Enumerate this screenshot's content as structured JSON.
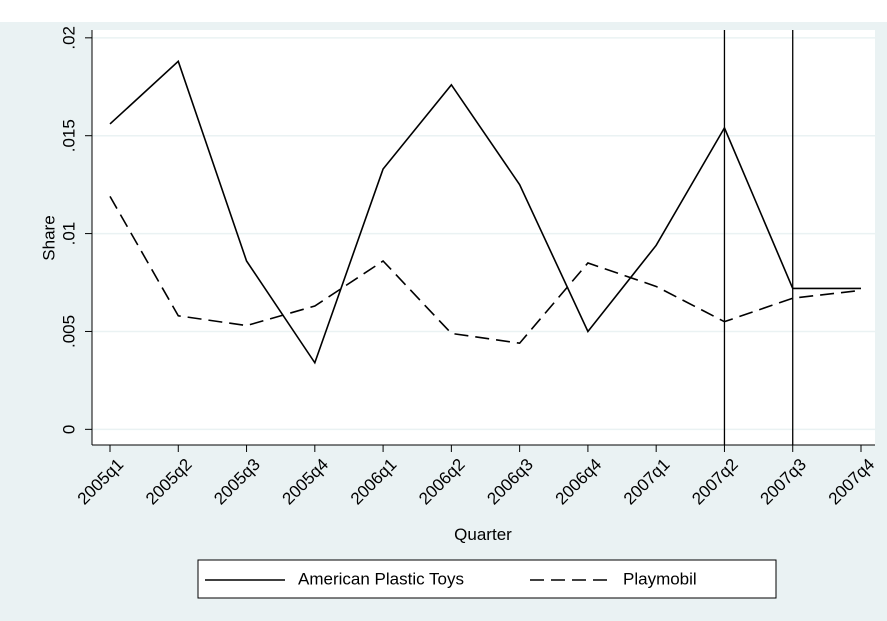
{
  "chart_data": {
    "type": "line",
    "categories": [
      "2005q1",
      "2005q2",
      "2005q3",
      "2005q4",
      "2006q1",
      "2006q2",
      "2006q3",
      "2006q4",
      "2007q1",
      "2007q2",
      "2007q3",
      "2007q4"
    ],
    "series": [
      {
        "name": "American Plastic Toys",
        "color": "#000000",
        "dash": "solid",
        "values": [
          0.0156,
          0.0188,
          0.0086,
          0.0034,
          0.0133,
          0.0176,
          0.0125,
          0.005,
          0.0094,
          0.0154,
          0.0072,
          0.0072
        ]
      },
      {
        "name": "Playmobil",
        "color": "#000000",
        "dash": "dashed",
        "values": [
          0.0119,
          0.0058,
          0.0053,
          0.0063,
          0.0086,
          0.0049,
          0.0044,
          0.0085,
          0.0073,
          0.0055,
          0.0067,
          0.0071
        ]
      }
    ],
    "xlabel": "Quarter",
    "ylabel": "Share",
    "ylim": [
      -0.0008,
      0.0204
    ],
    "yticks": [
      0,
      {
        "value": 0.005,
        "label": ".005"
      },
      {
        "value": 0.01,
        "label": ".01"
      },
      {
        "value": 0.015,
        "label": ".015"
      },
      {
        "value": 0.02,
        "label": ".02"
      }
    ],
    "vlines": [
      9,
      10
    ],
    "grid": true,
    "legend": "bottom"
  }
}
